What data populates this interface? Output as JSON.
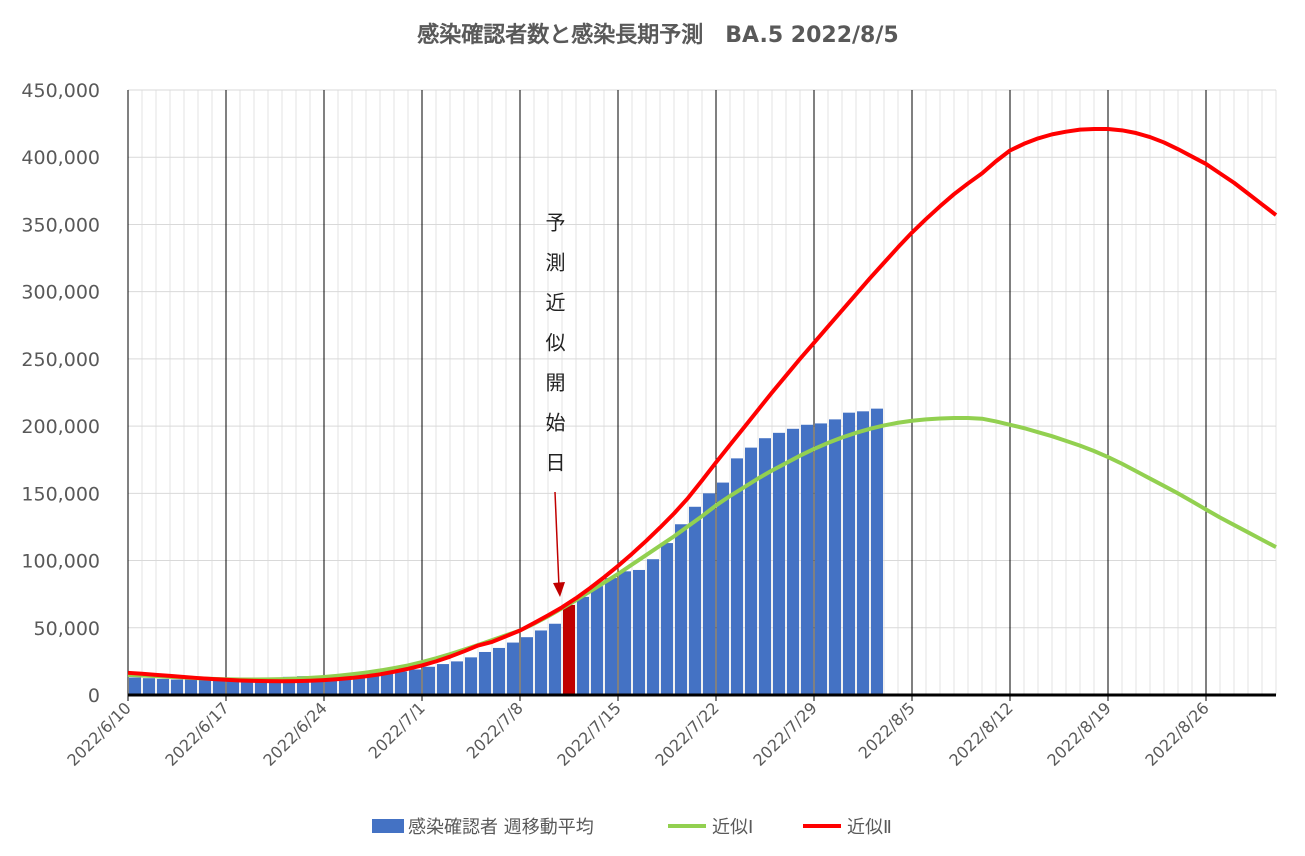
{
  "chart_data": {
    "type": "bar",
    "title": "感染確認者数と感染長期予測　BA.5  2022/8/5",
    "annotation": "予測近似開始日",
    "categories": [
      "2022/6/10",
      null,
      null,
      null,
      null,
      null,
      null,
      "2022/6/17",
      null,
      null,
      null,
      null,
      null,
      null,
      "2022/6/24",
      null,
      null,
      null,
      null,
      null,
      null,
      "2022/7/1",
      null,
      null,
      null,
      null,
      null,
      null,
      "2022/7/8",
      null,
      null,
      null,
      null,
      null,
      null,
      "2022/7/15",
      null,
      null,
      null,
      null,
      null,
      null,
      "2022/7/22",
      null,
      null,
      null,
      null,
      null,
      null,
      "2022/7/29",
      null,
      null,
      null,
      null,
      null,
      null,
      "2022/8/5",
      null,
      null,
      null,
      null,
      null,
      null,
      "2022/8/12",
      null,
      null,
      null,
      null,
      null,
      null,
      "2022/8/19",
      null,
      null,
      null,
      null,
      null,
      null,
      "2022/8/26",
      null,
      null,
      null,
      null,
      null
    ],
    "series": [
      {
        "name": "感染確認者 週移動平均",
        "type": "bar",
        "color": "#4472c4",
        "values": [
          13000,
          12500,
          12000,
          11500,
          11500,
          12000,
          12500,
          13000,
          13000,
          13000,
          13000,
          13500,
          14000,
          14000,
          14500,
          15000,
          15500,
          16000,
          16500,
          17500,
          19000,
          21000,
          23000,
          25000,
          28000,
          32000,
          35000,
          39000,
          43000,
          48000,
          53000,
          67000,
          73000,
          81000,
          87000,
          92000,
          93000,
          101000,
          113000,
          127000,
          140000,
          150000,
          158000,
          176000,
          184000,
          191000,
          195000,
          198000,
          201000,
          202000,
          205000,
          210000,
          211000,
          213000,
          null,
          null,
          null,
          null,
          null,
          null,
          null,
          null,
          null,
          null,
          null,
          null,
          null,
          null,
          null,
          null,
          null,
          null,
          null,
          null,
          null,
          null,
          null,
          null,
          null,
          null,
          null,
          null,
          null
        ],
        "colors": [
          "#4472c4",
          "#4472c4",
          "#4472c4",
          "#4472c4",
          "#4472c4",
          "#4472c4",
          "#4472c4",
          "#4472c4",
          "#4472c4",
          "#4472c4",
          "#4472c4",
          "#4472c4",
          "#4472c4",
          "#4472c4",
          "#4472c4",
          "#4472c4",
          "#4472c4",
          "#4472c4",
          "#4472c4",
          "#4472c4",
          "#4472c4",
          "#4472c4",
          "#4472c4",
          "#4472c4",
          "#4472c4",
          "#4472c4",
          "#4472c4",
          "#4472c4",
          "#4472c4",
          "#4472c4",
          "#4472c4",
          "#c00000",
          "#4472c4",
          "#4472c4",
          "#4472c4",
          "#4472c4",
          "#4472c4",
          "#4472c4",
          "#4472c4",
          "#4472c4",
          "#4472c4",
          "#4472c4",
          "#4472c4",
          "#4472c4",
          "#4472c4",
          "#4472c4",
          "#4472c4",
          "#4472c4",
          "#4472c4",
          "#4472c4",
          "#4472c4",
          "#4472c4",
          "#4472c4",
          "#4472c4",
          null,
          null,
          null,
          null,
          null,
          null,
          null,
          null,
          null,
          null,
          null,
          null,
          null,
          null,
          null,
          null,
          null,
          null,
          null,
          null,
          null,
          null,
          null,
          null,
          null,
          null,
          null,
          null,
          null
        ]
      },
      {
        "name": "近似Ⅰ",
        "type": "line",
        "color": "#92d050",
        "values": [
          15000,
          14500,
          14000,
          13500,
          13000,
          12500,
          12000,
          11700,
          11500,
          11500,
          11600,
          11800,
          12200,
          12700,
          13400,
          14300,
          15400,
          16700,
          18200,
          20000,
          22000,
          24500,
          27300,
          30400,
          33700,
          37200,
          40800,
          44400,
          48000,
          53000,
          58500,
          64500,
          70500,
          77000,
          83500,
          90000,
          97000,
          104000,
          111000,
          118000,
          125500,
          133000,
          141000,
          148000,
          154500,
          161000,
          167000,
          172500,
          178000,
          183000,
          187500,
          191500,
          195000,
          198000,
          200500,
          202500,
          204000,
          205000,
          205700,
          206000,
          206000,
          205500,
          203500,
          201000,
          198500,
          195500,
          192500,
          189000,
          185500,
          181500,
          177000,
          172000,
          166500,
          161000,
          155500,
          150000,
          144000,
          138000,
          132000,
          126500,
          121000,
          115500,
          110000
        ]
      },
      {
        "name": "近似Ⅱ",
        "type": "line",
        "color": "#ff0000",
        "values": [
          16500,
          15800,
          15000,
          14200,
          13400,
          12600,
          11900,
          11300,
          10800,
          10500,
          10300,
          10200,
          10300,
          10600,
          11100,
          11800,
          12700,
          13900,
          15400,
          17300,
          19500,
          22000,
          25000,
          28500,
          32500,
          36800,
          39500,
          43700,
          48000,
          53500,
          59200,
          65200,
          72000,
          79500,
          87500,
          96000,
          105000,
          114500,
          124500,
          135000,
          146500,
          159500,
          173000,
          186000,
          199000,
          212000,
          225000,
          237500,
          250000,
          262000,
          274000,
          286000,
          298000,
          310000,
          321500,
          333000,
          344000,
          354000,
          363500,
          372500,
          380500,
          388000,
          397000,
          405000,
          410000,
          414000,
          417000,
          419000,
          420500,
          421000,
          421000,
          420000,
          418000,
          415000,
          411000,
          406000,
          400500,
          395000,
          388000,
          381000,
          373000,
          365000,
          357000
        ]
      }
    ],
    "ylim": [
      0,
      450000
    ],
    "yticks": [
      0,
      {
        "value": 50000,
        "label": "50,000"
      },
      {
        "value": 100000,
        "label": "100,000"
      },
      {
        "value": 150000,
        "label": "150,000"
      },
      {
        "value": 200000,
        "label": "200,000"
      },
      {
        "value": 250000,
        "label": "250,000"
      },
      {
        "value": 300000,
        "label": "300,000"
      },
      {
        "value": 350000,
        "label": "350,000"
      },
      {
        "value": 400000,
        "label": "400,000"
      },
      {
        "value": 450000,
        "label": "450,000"
      }
    ],
    "grid": true,
    "legend": "bottom"
  }
}
